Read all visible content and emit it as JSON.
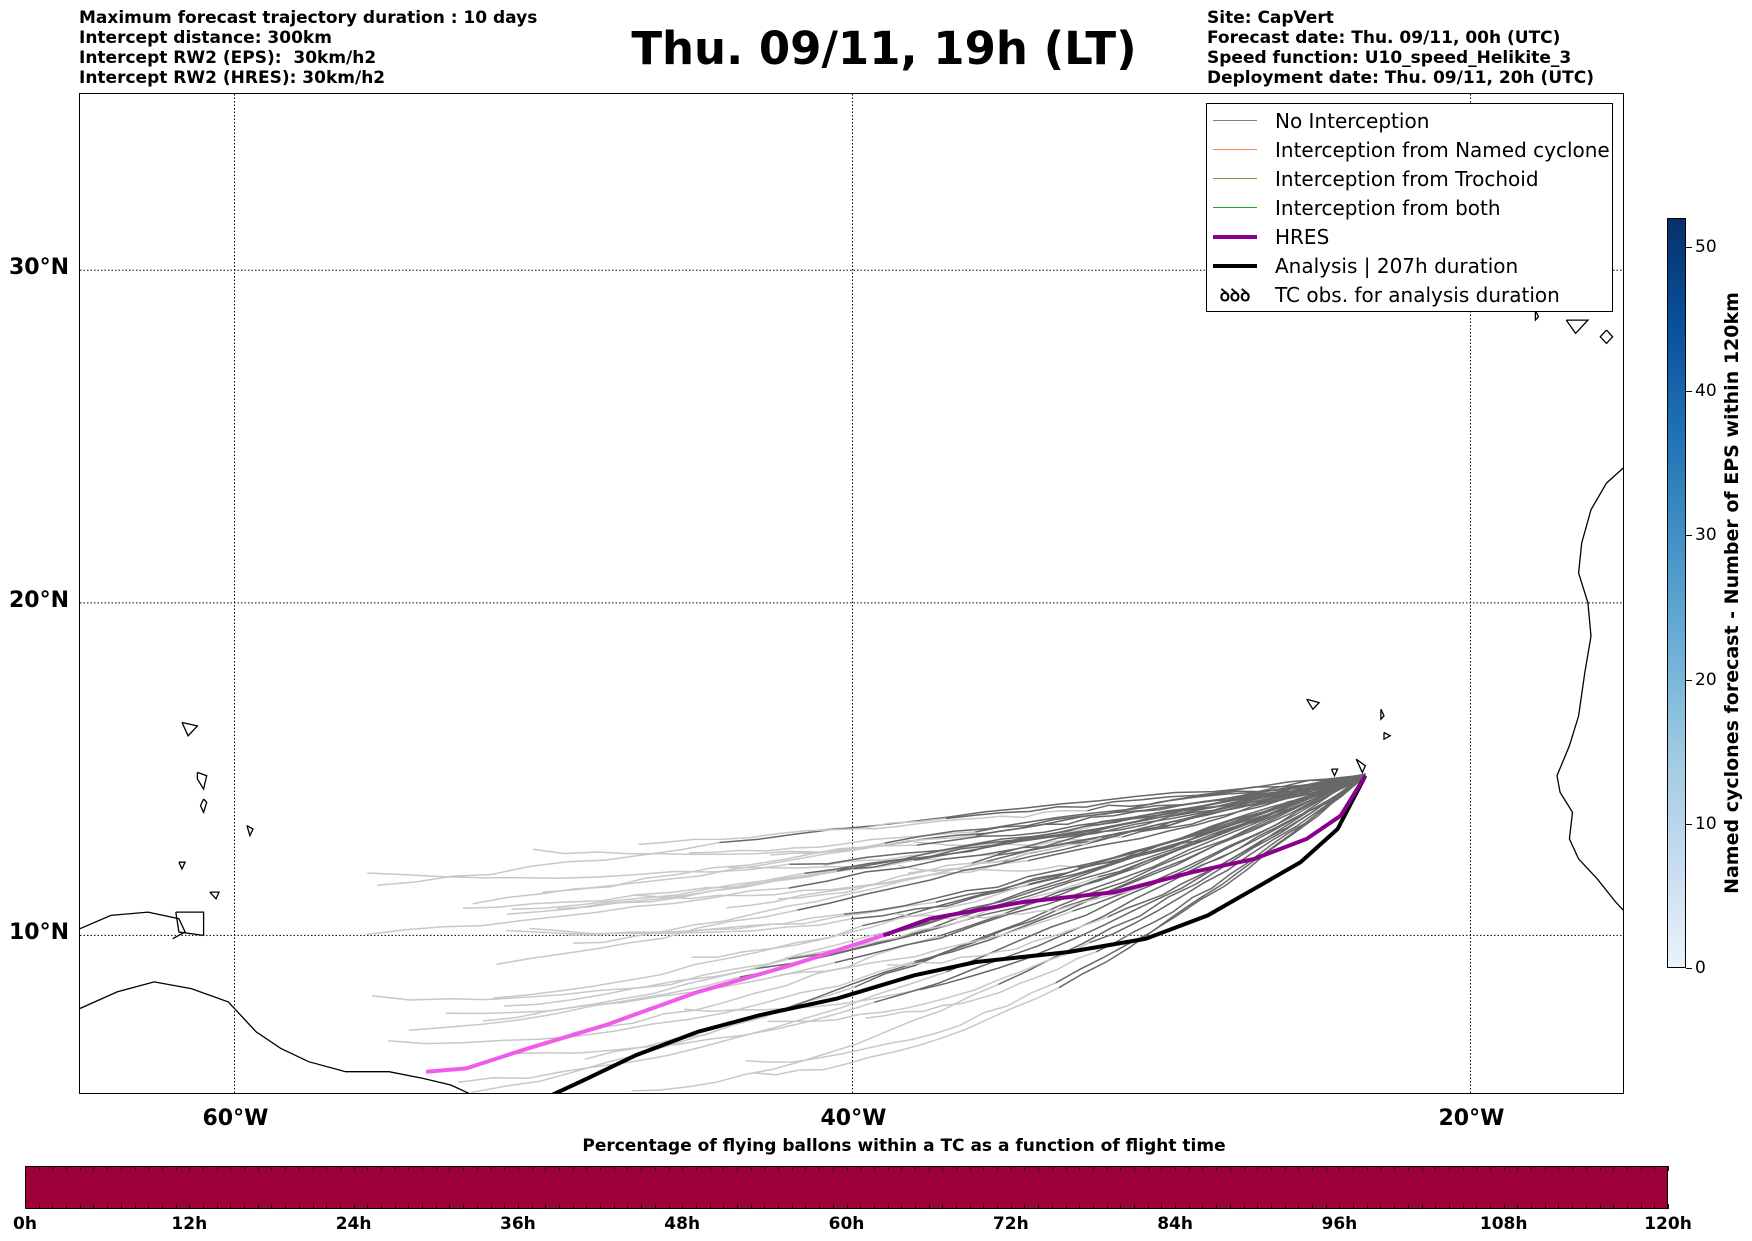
{
  "header": {
    "left_lines": [
      "Maximum forecast trajectory duration : 10 days",
      "Intercept distance: 300km",
      "Intercept RW2 (EPS):  30km/h2",
      "Intercept RW2 (HRES): 30km/h2"
    ],
    "title": "Thu. 09/11, 19h (LT)",
    "right_lines": [
      "Site: CapVert",
      "Forecast date: Thu. 09/11, 00h (UTC)",
      "Speed function: U10_speed_Helikite_3",
      "Deployment date: Thu. 09/11, 20h (UTC)"
    ]
  },
  "map": {
    "lat_labels": [
      "30°N",
      "20°N",
      "10°N"
    ],
    "lon_labels": [
      "60°W",
      "40°W",
      "20°W"
    ],
    "extent": {
      "lon_min": -65,
      "lon_max": -15,
      "lat_min": 5.2,
      "lat_max": 35.3
    },
    "graticule_lat": [
      30,
      20,
      10
    ],
    "graticule_lon": [
      -60,
      -40,
      -20
    ],
    "launch_site": {
      "lon": -23.4,
      "lat": 14.8,
      "name": "CapVert"
    }
  },
  "legend": {
    "items": [
      {
        "label": "No Interception",
        "color": "#808080",
        "style": "thin"
      },
      {
        "label": "Interception from Named cyclone",
        "color": "#ff7f50",
        "style": "thin"
      },
      {
        "label": "Interception from Trochoid",
        "color": "#9b8f3a",
        "style": "thin"
      },
      {
        "label": "Interception from both",
        "color": "#2ca02c",
        "style": "thin"
      },
      {
        "label": "HRES",
        "color": "#8b008b",
        "style": "thick"
      },
      {
        "label": "Analysis | 207h duration",
        "color": "#000000",
        "style": "thick"
      },
      {
        "label": "TC obs. for analysis duration",
        "color": "#000000",
        "style": "tc-symbol",
        "symbol": "ꝺꝺꝺ"
      }
    ]
  },
  "colorbar_right": {
    "title": "Named cyclones forecast - Number of EPS within 120km",
    "ticks": [
      "0",
      "10",
      "20",
      "30",
      "40",
      "50"
    ],
    "min": 0,
    "max": 52
  },
  "colorbar_bottom": {
    "title": "Percentage of flying ballons within a TC as a function of flight time",
    "ticks": [
      "0h",
      "12h",
      "24h",
      "36h",
      "48h",
      "60h",
      "72h",
      "84h",
      "96h",
      "108h",
      "120h"
    ],
    "color": "#9e003a"
  },
  "chart_data": {
    "type": "line",
    "hres_track": {
      "name": "HRES",
      "points": [
        [
          -23.4,
          14.8
        ],
        [
          -24.2,
          13.6
        ],
        [
          -25.3,
          12.9
        ],
        [
          -27.0,
          12.3
        ],
        [
          -29.0,
          11.9
        ],
        [
          -31.5,
          11.3
        ],
        [
          -34.5,
          11.0
        ],
        [
          -37.5,
          10.5
        ],
        [
          -39.0,
          10.0
        ],
        [
          -42.0,
          9.1
        ],
        [
          -45.0,
          8.3
        ],
        [
          -48.0,
          7.3
        ],
        [
          -50.5,
          6.6
        ],
        [
          -52.5,
          6.0
        ],
        [
          -53.8,
          5.9
        ]
      ]
    },
    "analysis_track": {
      "name": "Analysis | 207h duration",
      "points": [
        [
          -23.4,
          14.8
        ],
        [
          -24.3,
          13.2
        ],
        [
          -25.5,
          12.2
        ],
        [
          -27.0,
          11.4
        ],
        [
          -28.5,
          10.6
        ],
        [
          -30.5,
          9.9
        ],
        [
          -33.0,
          9.5
        ],
        [
          -36.0,
          9.2
        ],
        [
          -38.0,
          8.8
        ],
        [
          -40.5,
          8.1
        ],
        [
          -43.0,
          7.6
        ],
        [
          -45.0,
          7.1
        ],
        [
          -47.0,
          6.4
        ],
        [
          -48.8,
          5.6
        ],
        [
          -50.2,
          5.0
        ]
      ]
    },
    "eps_track_count": 50,
    "eps_color_near": "#686868",
    "eps_color_far": "#c8c8c8"
  }
}
